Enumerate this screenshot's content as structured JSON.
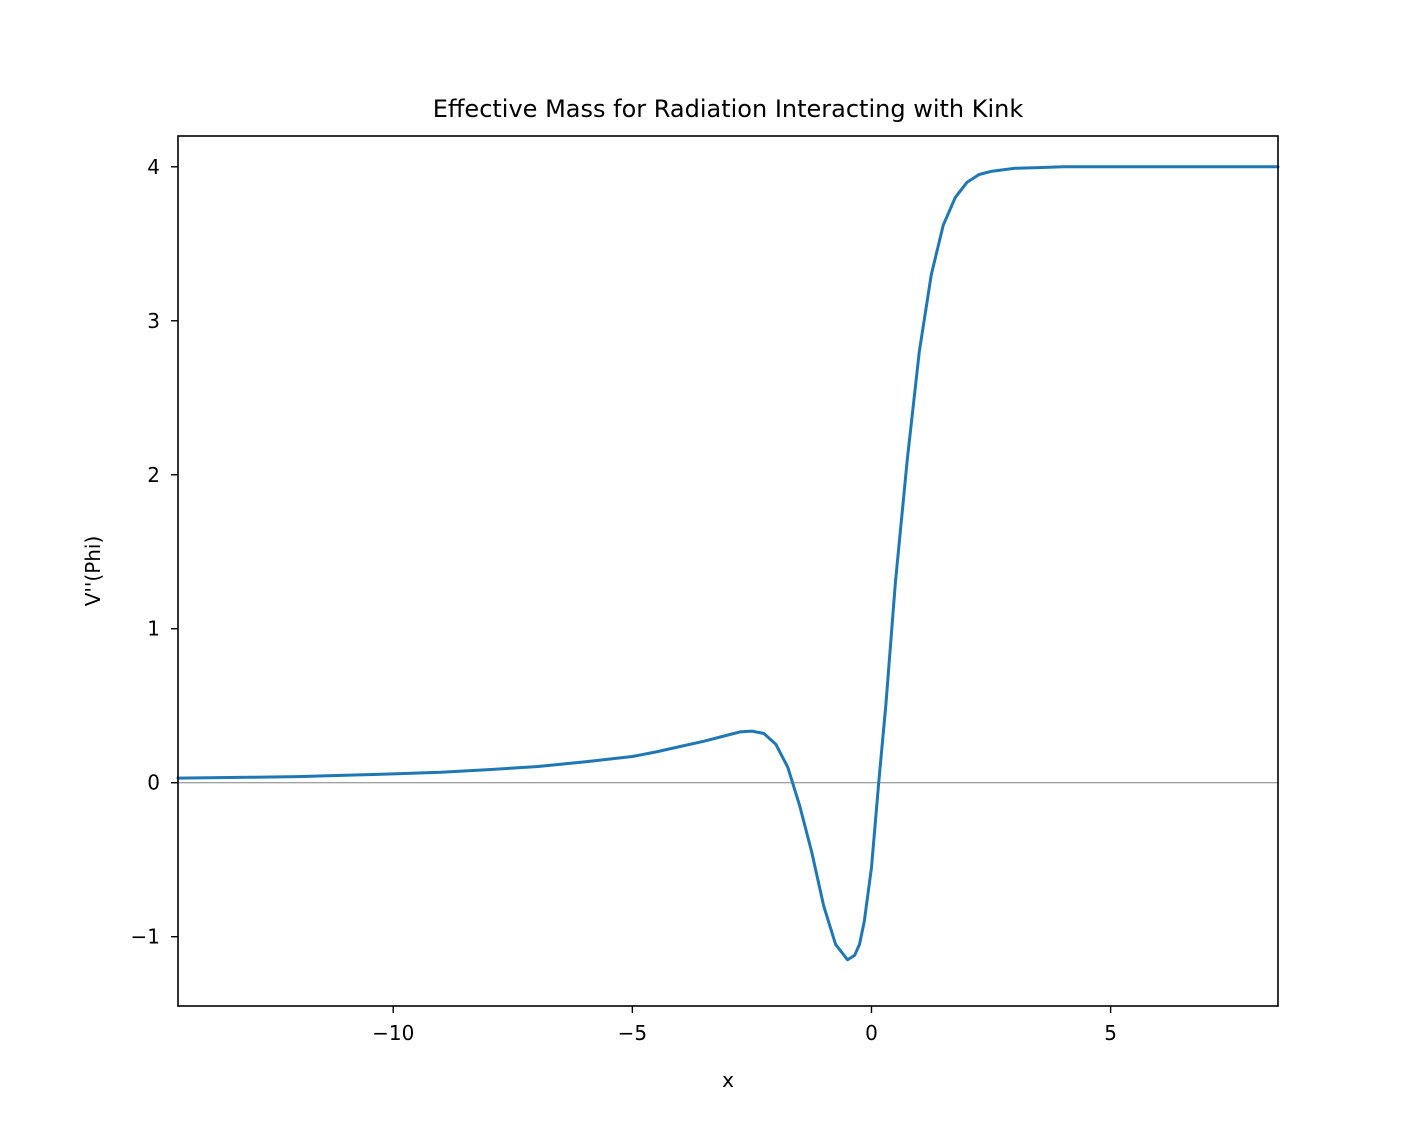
{
  "chart_data": {
    "type": "line",
    "title": "Effective Mass for Radiation Interacting with Kink",
    "xlabel": "x",
    "ylabel": "V''(Phi)",
    "xlim": [
      -14.5,
      8.5
    ],
    "ylim": [
      -1.45,
      4.2
    ],
    "grid": false,
    "x_ticks": [
      -10,
      -5,
      0,
      5
    ],
    "x_tick_labels": [
      "−10",
      "−5",
      "0",
      "5"
    ],
    "y_ticks": [
      -1,
      0,
      1,
      2,
      3,
      4
    ],
    "y_tick_labels": [
      "−1",
      "0",
      "1",
      "2",
      "3",
      "4"
    ],
    "reference_line": {
      "y": 0,
      "color": "#808080"
    },
    "series": [
      {
        "color": "#1f77b4",
        "x": [
          -14.5,
          -13,
          -12,
          -11,
          -10,
          -9,
          -8,
          -7,
          -6,
          -5,
          -4.5,
          -4,
          -3.5,
          -3,
          -2.75,
          -2.5,
          -2.25,
          -2,
          -1.75,
          -1.5,
          -1.25,
          -1,
          -0.75,
          -0.5,
          -0.35,
          -0.25,
          -0.15,
          0,
          0.15,
          0.3,
          0.5,
          0.75,
          1,
          1.25,
          1.5,
          1.75,
          2,
          2.25,
          2.5,
          3,
          3.5,
          4,
          5,
          6,
          7,
          8.5
        ],
        "y": [
          0.03,
          0.035,
          0.04,
          0.048,
          0.057,
          0.068,
          0.085,
          0.105,
          0.135,
          0.17,
          0.2,
          0.235,
          0.27,
          0.31,
          0.33,
          0.335,
          0.32,
          0.25,
          0.1,
          -0.15,
          -0.45,
          -0.8,
          -1.05,
          -1.15,
          -1.12,
          -1.05,
          -0.9,
          -0.55,
          0,
          0.5,
          1.3,
          2.1,
          2.8,
          3.3,
          3.62,
          3.8,
          3.9,
          3.95,
          3.97,
          3.99,
          3.995,
          4.0,
          4.0,
          4.0,
          4.0,
          4.0
        ]
      }
    ]
  }
}
